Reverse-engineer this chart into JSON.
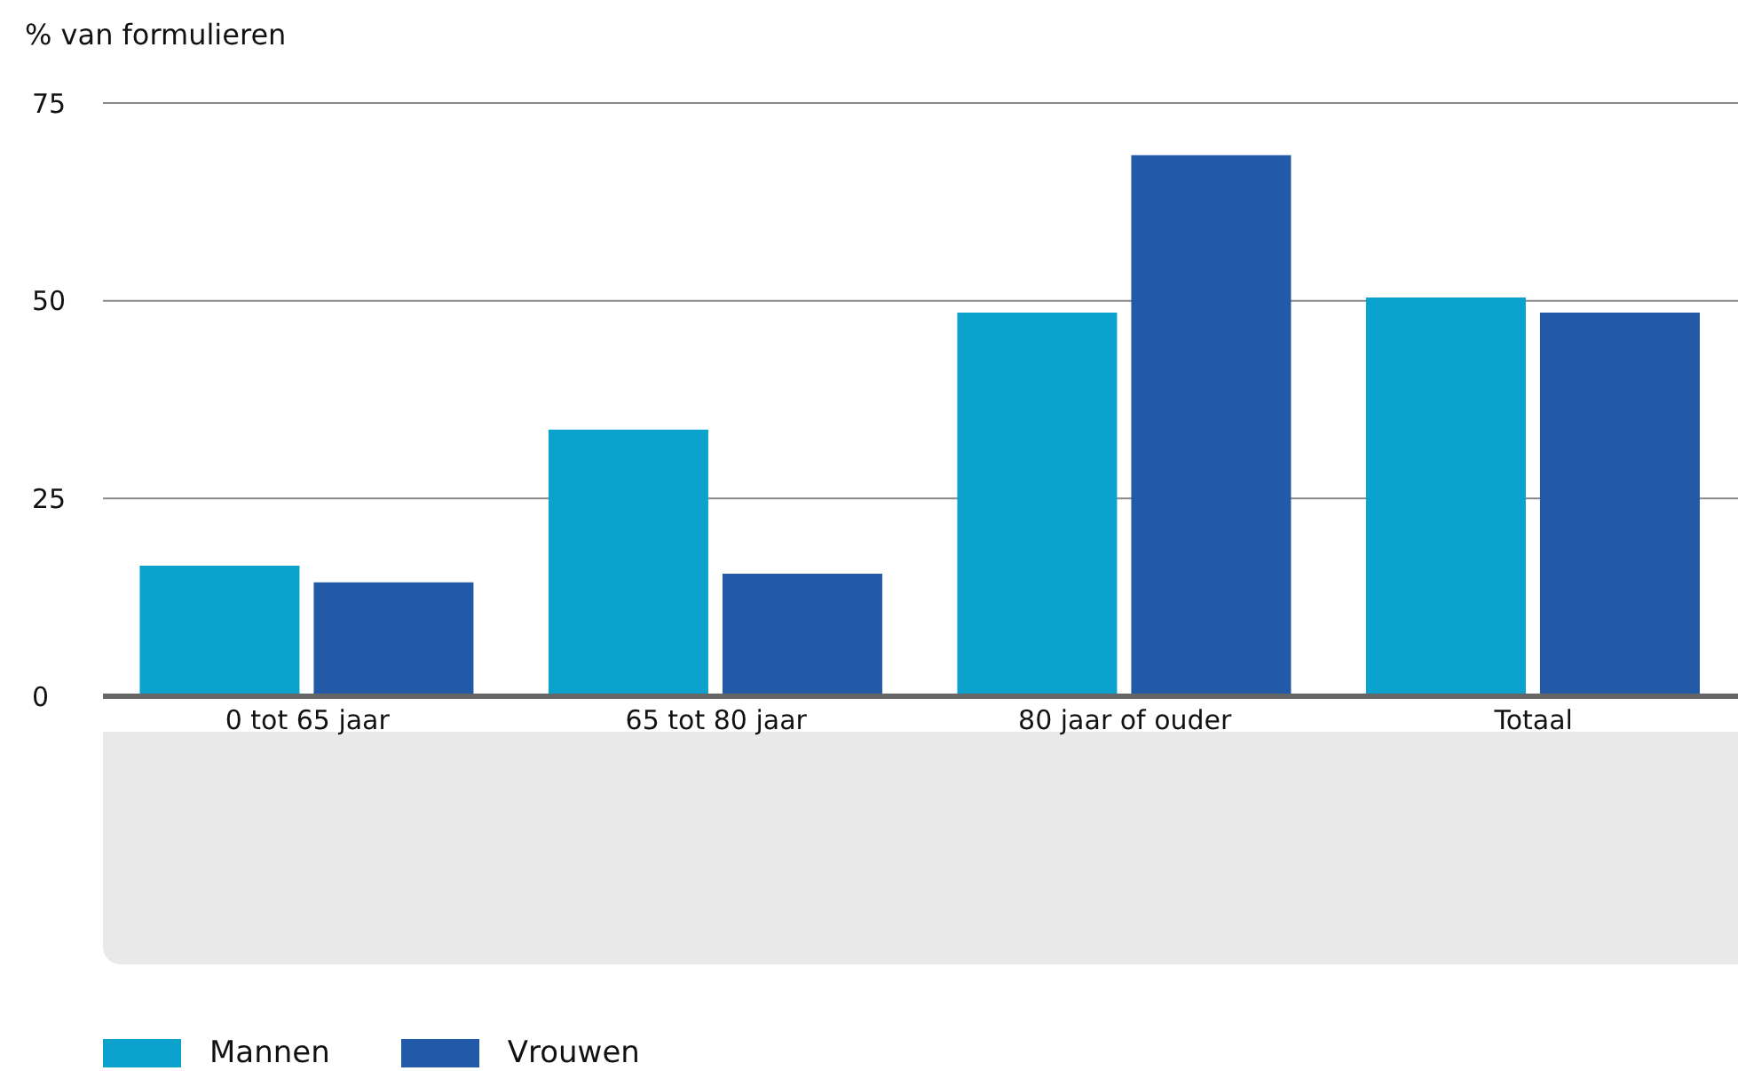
{
  "chart_data": {
    "type": "bar",
    "ylabel": "% van formulieren",
    "categories": [
      "0 tot 65 jaar",
      "65 tot 80 jaar",
      "80 jaar of ouder",
      "Totaal"
    ],
    "series": [
      {
        "name": "Mannen",
        "color": "#0ba3cd",
        "values": [
          16.5,
          33.7,
          48.5,
          50.4
        ]
      },
      {
        "name": "Vrouwen",
        "color": "#225aa8",
        "values": [
          14.4,
          15.5,
          68.4,
          48.5
        ]
      }
    ],
    "ylim": [
      0,
      75
    ],
    "yticks": [
      0,
      25,
      50,
      75
    ],
    "grid": "y",
    "legend": "bottom left"
  }
}
